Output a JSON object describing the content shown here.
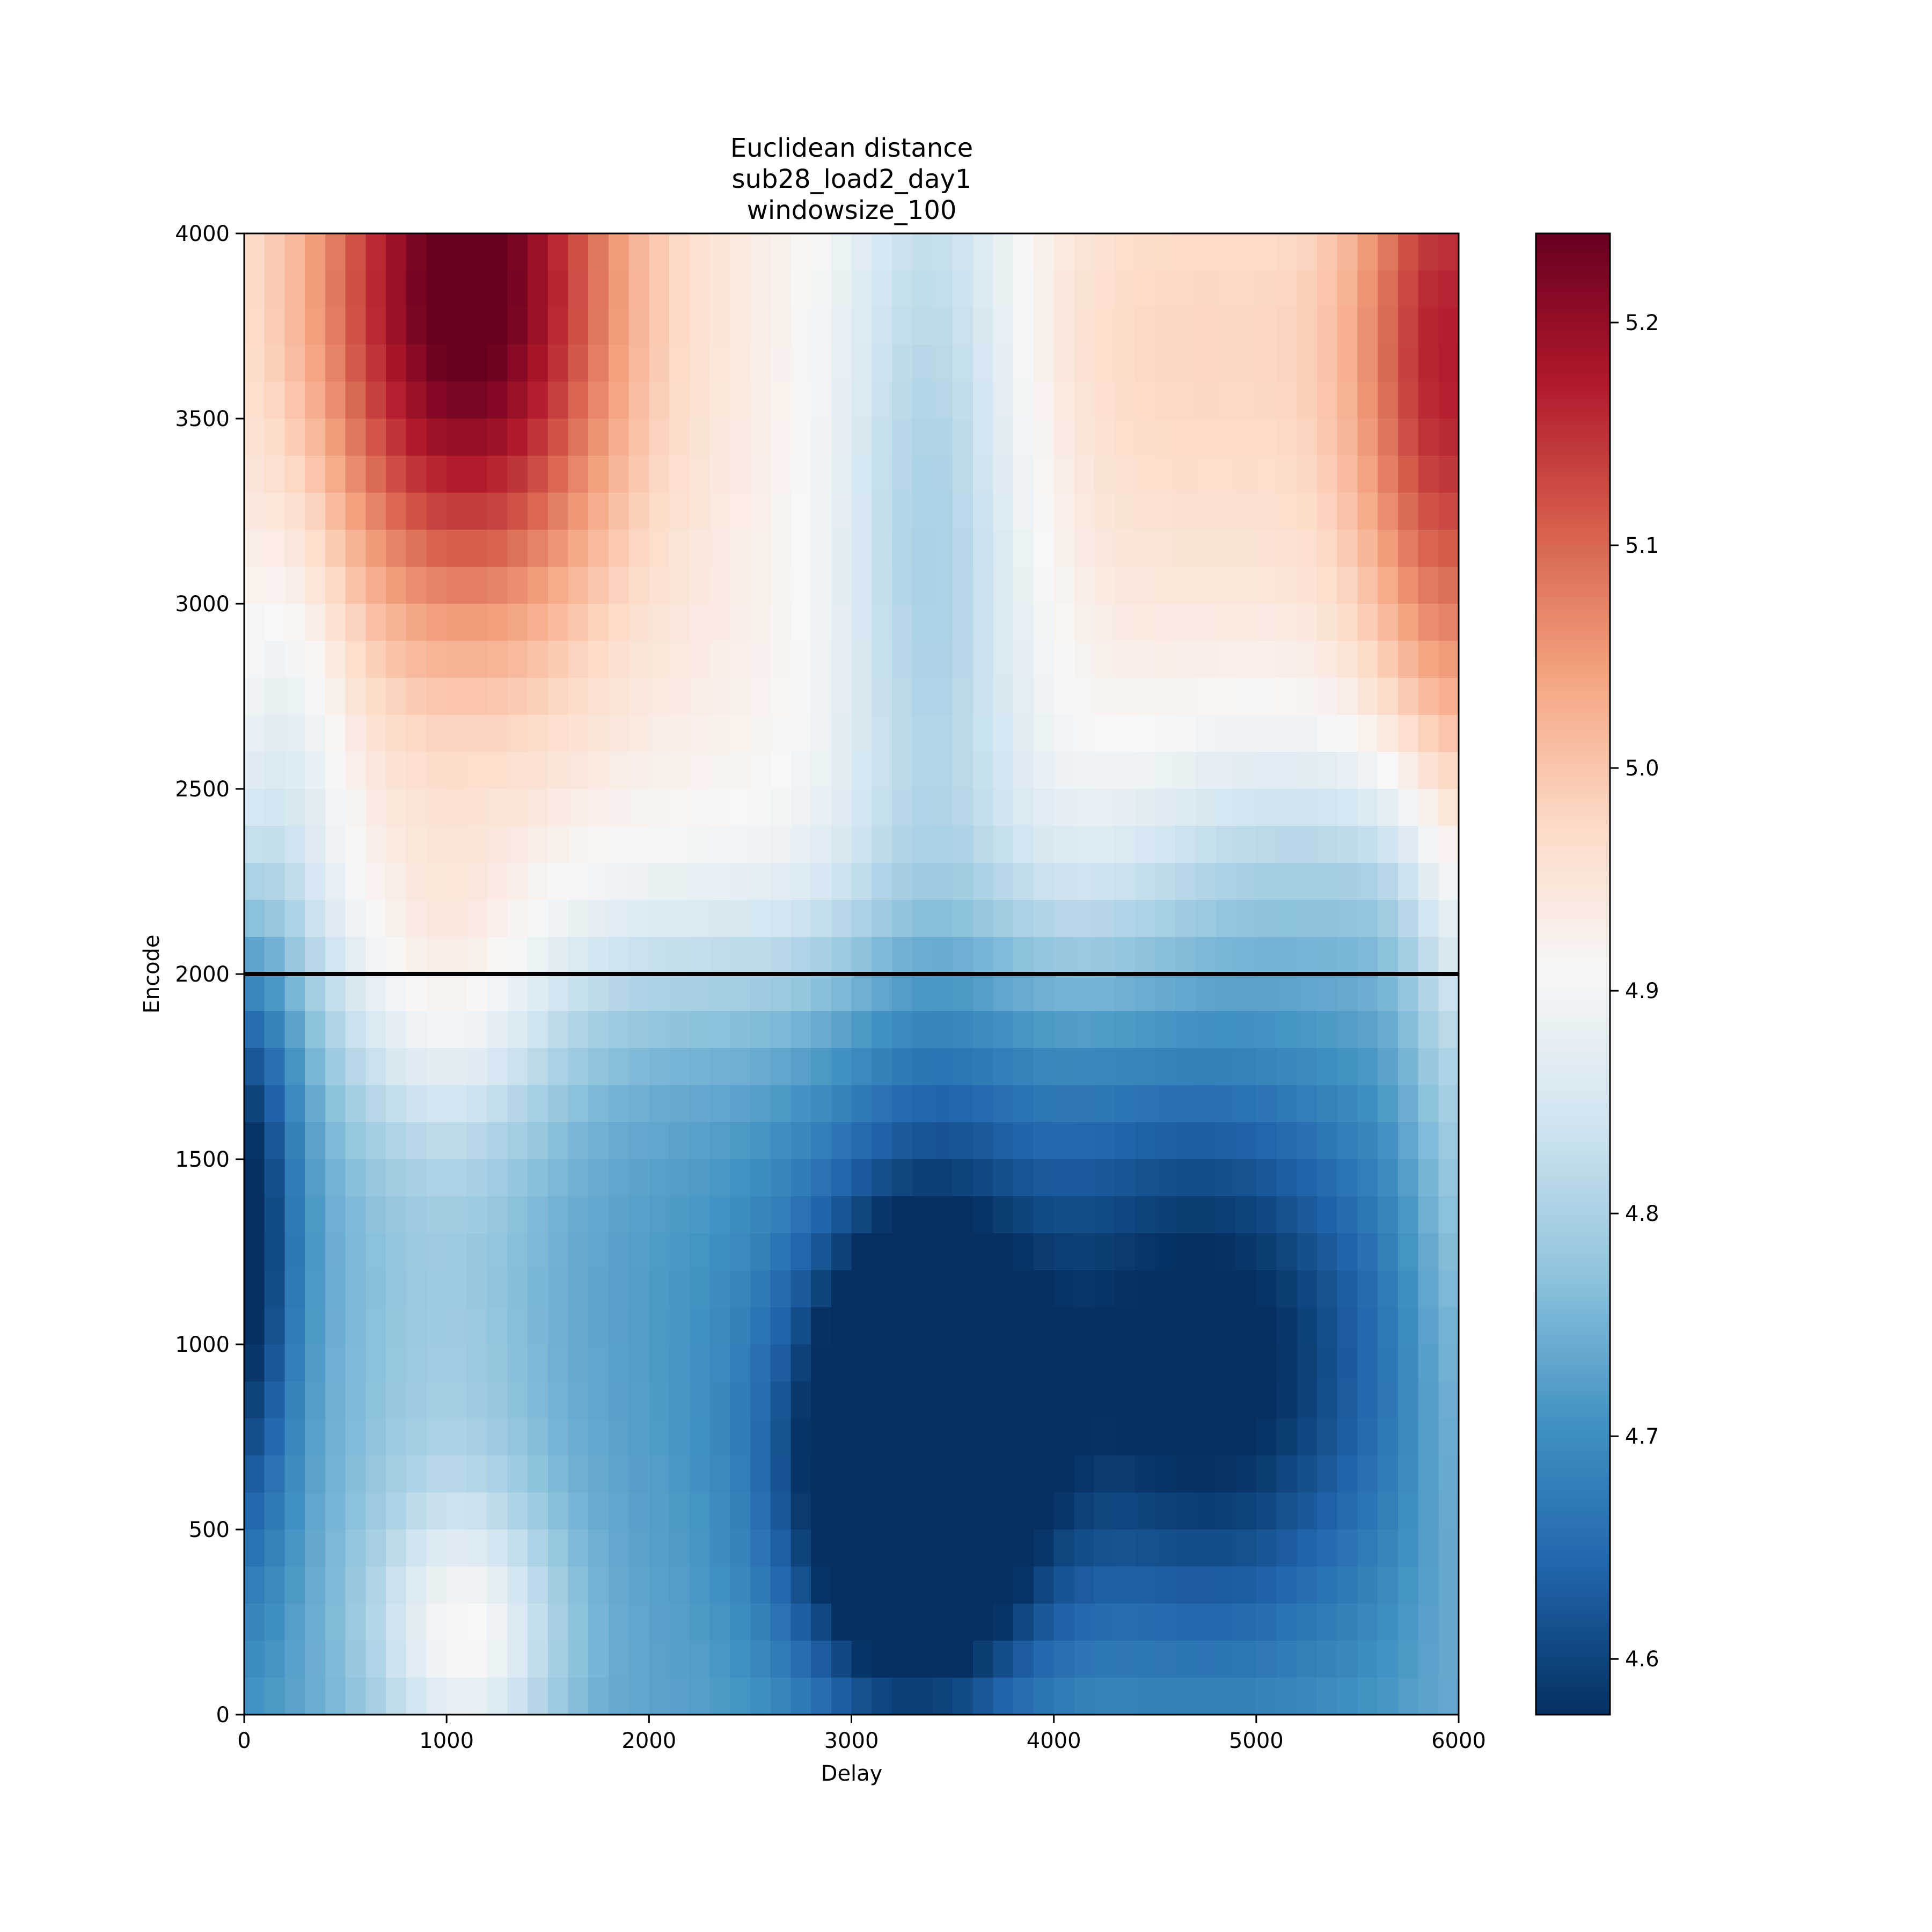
{
  "chart_data": {
    "type": "heatmap",
    "title": [
      "Euclidean distance",
      "sub28_load2_day1",
      "windowsize_100"
    ],
    "xlabel": "Delay",
    "ylabel": "Encode",
    "xlim": [
      0,
      6000
    ],
    "ylim": [
      0,
      4000
    ],
    "x_ticks": [
      0,
      1000,
      2000,
      3000,
      4000,
      5000,
      6000
    ],
    "y_ticks": [
      0,
      500,
      1000,
      1500,
      2000,
      2500,
      3000,
      3500,
      4000
    ],
    "cell_size": 100,
    "grid_shape": {
      "rows": 40,
      "cols": 60
    },
    "colormap": "RdBu_r",
    "colormap_stops": [
      "#053061",
      "#2166ac",
      "#4393c3",
      "#92c5de",
      "#d1e5f0",
      "#f7f7f7",
      "#fddbc7",
      "#f4a582",
      "#d6604d",
      "#b2182b",
      "#67001f"
    ],
    "vmin": 4.575,
    "vmax": 5.24,
    "colorbar_ticks": [
      4.6,
      4.7,
      4.8,
      4.9,
      5.0,
      5.1,
      5.2
    ],
    "hline": {
      "y": 2000,
      "color": "#000000"
    },
    "grid": false,
    "approx_features": [
      {
        "x": 1100,
        "y": 3850,
        "value": 5.24
      },
      {
        "x": 5950,
        "y": 3850,
        "value": 5.18
      },
      {
        "x": 3300,
        "y": 650,
        "value": 4.575
      },
      {
        "x": 1100,
        "y": 150,
        "value": 4.97
      },
      {
        "x": 50,
        "y": 1300,
        "value": 4.65
      },
      {
        "x": 3300,
        "y": 3500,
        "value": 4.87
      }
    ]
  }
}
